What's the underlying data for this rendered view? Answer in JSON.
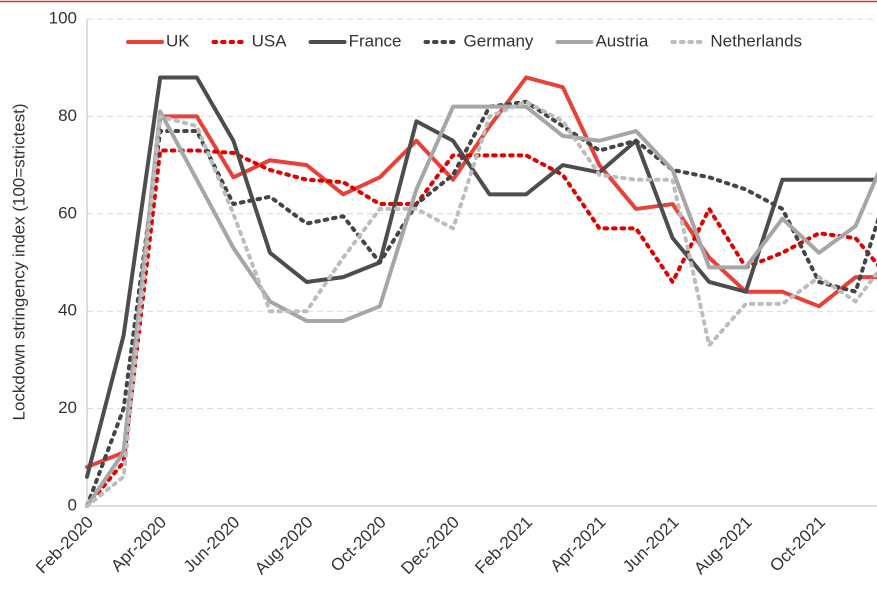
{
  "chart_data": {
    "type": "line",
    "ylabel": "Lockdown stringency index (100=strictest)",
    "categories": [
      "Feb-2020",
      null,
      "Apr-2020",
      null,
      "Jun-2020",
      null,
      "Aug-2020",
      null,
      "Oct-2020",
      null,
      "Dec-2020",
      null,
      "Feb-2021",
      null,
      "Apr-2021",
      null,
      "Jun-2021",
      null,
      "Aug-2021",
      null,
      "Oct-2021",
      null,
      null
    ],
    "series": [
      {
        "name": "UK",
        "color": "#e8413a",
        "dash": "solid",
        "values": [
          8,
          11,
          80,
          80,
          67.5,
          71,
          70,
          64,
          67.5,
          75,
          67,
          78,
          88,
          86,
          70,
          61,
          62,
          51,
          44,
          44,
          41,
          47,
          47
        ]
      },
      {
        "name": "USA",
        "color": "#e00000",
        "dash": "dotted",
        "values": [
          0,
          9,
          73,
          73,
          72.5,
          69,
          67,
          66.5,
          62,
          62,
          72,
          72,
          72,
          68,
          57,
          57,
          46,
          61,
          49,
          52,
          56,
          55,
          46
        ]
      },
      {
        "name": "France",
        "color": "#4d4d4d",
        "dash": "solid",
        "values": [
          6,
          35,
          88,
          88,
          75,
          52,
          46,
          47,
          50,
          79,
          75,
          64,
          64,
          70,
          68.5,
          75,
          55,
          46,
          44,
          67,
          67,
          67,
          67
        ]
      },
      {
        "name": "Germany",
        "color": "#454545",
        "dash": "dotted",
        "values": [
          0,
          20,
          77,
          77,
          62,
          63.5,
          58,
          59.5,
          50,
          62,
          68,
          82,
          83,
          78,
          73,
          75,
          69,
          67.5,
          65,
          61,
          46,
          44,
          68
        ]
      },
      {
        "name": "Austria",
        "color": "#a6a6a6",
        "dash": "solid",
        "values": [
          0,
          11,
          81,
          67,
          53,
          42,
          38,
          38,
          41,
          65,
          82,
          82,
          82,
          76,
          75,
          77,
          69,
          49,
          49,
          59,
          52,
          57.5,
          75
        ]
      },
      {
        "name": "Netherlands",
        "color": "#bdbdbd",
        "dash": "dotted",
        "values": [
          0,
          6,
          80,
          78,
          60,
          40,
          40,
          51,
          61,
          61,
          57,
          80,
          83,
          79,
          68,
          67,
          67,
          33,
          41.5,
          41.5,
          47,
          42,
          52
        ]
      }
    ],
    "ylim": [
      0,
      100
    ],
    "yticks": [
      0,
      20,
      40,
      60,
      80,
      100
    ],
    "grid": true,
    "legend": "top"
  }
}
